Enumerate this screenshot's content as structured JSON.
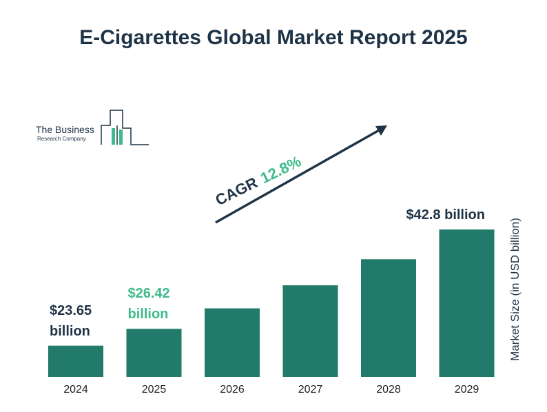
{
  "title": "E-Cigarettes Global Market Report 2025",
  "logo": {
    "line1": "The Business",
    "line2": "Research Company"
  },
  "cagr": {
    "label": "CAGR",
    "value": "12.8%"
  },
  "colors": {
    "bar": "#217a6a",
    "title": "#1f3347",
    "accent_green": "#3dbb8a",
    "label_dark": "#1f3347"
  },
  "chart_data": {
    "type": "bar",
    "categories": [
      "2024",
      "2025",
      "2026",
      "2027",
      "2028",
      "2029"
    ],
    "values": [
      23.65,
      26.42,
      29.8,
      33.6,
      37.9,
      42.8
    ],
    "ylabel": "Market Size (in USD billion)",
    "data_labels": [
      {
        "index": 0,
        "lines": [
          "$23.65",
          "billion"
        ],
        "color": "#1f3347"
      },
      {
        "index": 1,
        "lines": [
          "$26.42",
          "billion"
        ],
        "color": "#3dbb8a"
      },
      {
        "index": 5,
        "lines": [
          "$42.8 billion"
        ],
        "color": "#1f3347"
      }
    ],
    "grid": false,
    "legend": "none"
  }
}
